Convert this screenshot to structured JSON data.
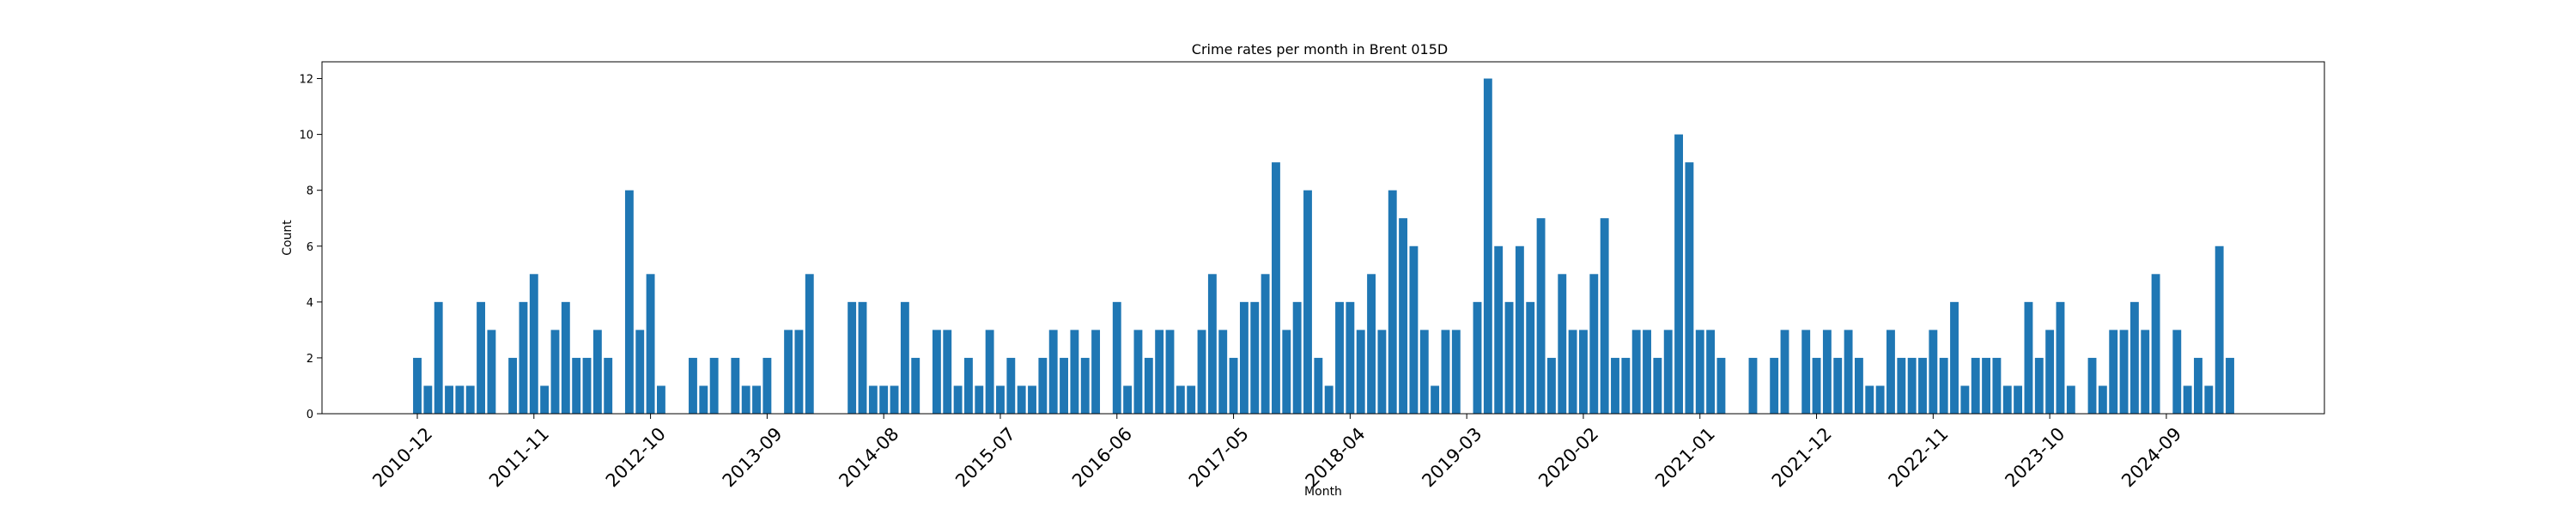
{
  "chart_data": {
    "type": "bar",
    "title": "Crime rates per month in Brent 015D",
    "xlabel": "Month",
    "ylabel": "Count",
    "ylim": [
      0,
      12.6
    ],
    "yticks": [
      0,
      2,
      4,
      6,
      8,
      10,
      12
    ],
    "grid": false,
    "legend": "none",
    "bar_color": "#1f77b4",
    "axis_color": "#000000",
    "background": "#ffffff",
    "start_month": "2010-12",
    "xtick_labels": [
      "2010-12",
      "2011-11",
      "2012-10",
      "2013-09",
      "2014-08",
      "2015-07",
      "2016-06",
      "2017-05",
      "2018-04",
      "2019-03",
      "2020-02",
      "2021-01",
      "2021-12",
      "2022-11",
      "2023-10",
      "2024-09"
    ],
    "values": [
      2,
      1,
      4,
      1,
      1,
      1,
      4,
      3,
      0,
      2,
      4,
      5,
      1,
      3,
      4,
      2,
      2,
      3,
      2,
      0,
      8,
      3,
      5,
      1,
      0,
      0,
      2,
      1,
      2,
      0,
      2,
      1,
      1,
      2,
      0,
      3,
      3,
      5,
      0,
      0,
      0,
      4,
      4,
      1,
      1,
      1,
      4,
      2,
      0,
      3,
      3,
      1,
      2,
      1,
      3,
      1,
      2,
      1,
      1,
      2,
      3,
      2,
      3,
      2,
      3,
      0,
      4,
      1,
      3,
      2,
      3,
      3,
      1,
      1,
      3,
      5,
      3,
      2,
      4,
      4,
      5,
      9,
      3,
      4,
      8,
      2,
      1,
      4,
      4,
      3,
      5,
      3,
      8,
      7,
      6,
      3,
      1,
      3,
      3,
      0,
      4,
      12,
      6,
      4,
      6,
      4,
      7,
      2,
      5,
      3,
      3,
      5,
      7,
      2,
      2,
      3,
      3,
      2,
      3,
      10,
      9,
      3,
      3,
      2,
      0,
      0,
      2,
      0,
      2,
      3,
      0,
      3,
      2,
      3,
      2,
      3,
      2,
      1,
      1,
      3,
      2,
      2,
      2,
      3,
      2,
      4,
      1,
      2,
      2,
      2,
      1,
      1,
      4,
      2,
      3,
      4,
      1,
      0,
      2,
      1,
      3,
      3,
      4,
      3,
      5,
      0,
      3,
      1,
      2,
      1,
      6,
      2
    ]
  }
}
